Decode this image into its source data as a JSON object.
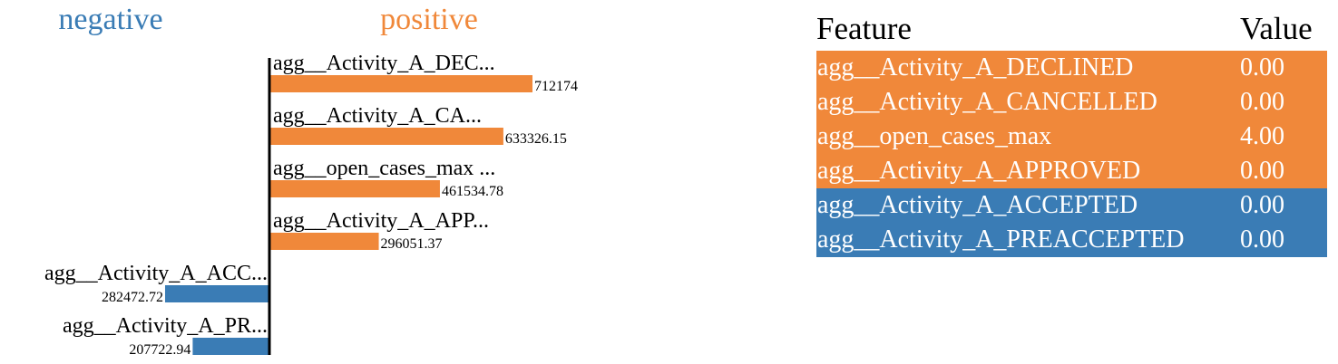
{
  "chart_data": {
    "type": "bar",
    "orientation": "horizontal",
    "legend": {
      "negative": "negative",
      "positive": "positive"
    },
    "colors": {
      "negative": "#3a7cb5",
      "positive": "#f0883a",
      "axis": "#000000"
    },
    "max_value": 712174,
    "bars": [
      {
        "label": "agg__Activity_A_DEC...",
        "value": 712174,
        "value_label": "712174",
        "sign": "positive"
      },
      {
        "label": "agg__Activity_A_CA...",
        "value": 633326.15,
        "value_label": "633326.15",
        "sign": "positive"
      },
      {
        "label": "agg__open_cases_max ...",
        "value": 461534.78,
        "value_label": "461534.78",
        "sign": "positive"
      },
      {
        "label": "agg__Activity_A_APP...",
        "value": 296051.37,
        "value_label": "296051.37",
        "sign": "positive"
      },
      {
        "label": "agg__Activity_A_ACC...",
        "value": 282472.72,
        "value_label": "282472.72",
        "sign": "negative"
      },
      {
        "label": "agg__Activity_A_PR...",
        "value": 207722.94,
        "value_label": "207722.94",
        "sign": "negative"
      }
    ]
  },
  "table": {
    "headers": {
      "feature": "Feature",
      "value": "Value"
    },
    "rows": [
      {
        "feature": "agg__Activity_A_DECLINED",
        "value": "0.00",
        "sign": "positive"
      },
      {
        "feature": "agg__Activity_A_CANCELLED",
        "value": "0.00",
        "sign": "positive"
      },
      {
        "feature": "agg__open_cases_max",
        "value": "4.00",
        "sign": "positive"
      },
      {
        "feature": "agg__Activity_A_APPROVED",
        "value": "0.00",
        "sign": "positive"
      },
      {
        "feature": "agg__Activity_A_ACCEPTED",
        "value": "0.00",
        "sign": "negative"
      },
      {
        "feature": "agg__Activity_A_PREACCEPTED",
        "value": "0.00",
        "sign": "negative"
      }
    ]
  }
}
